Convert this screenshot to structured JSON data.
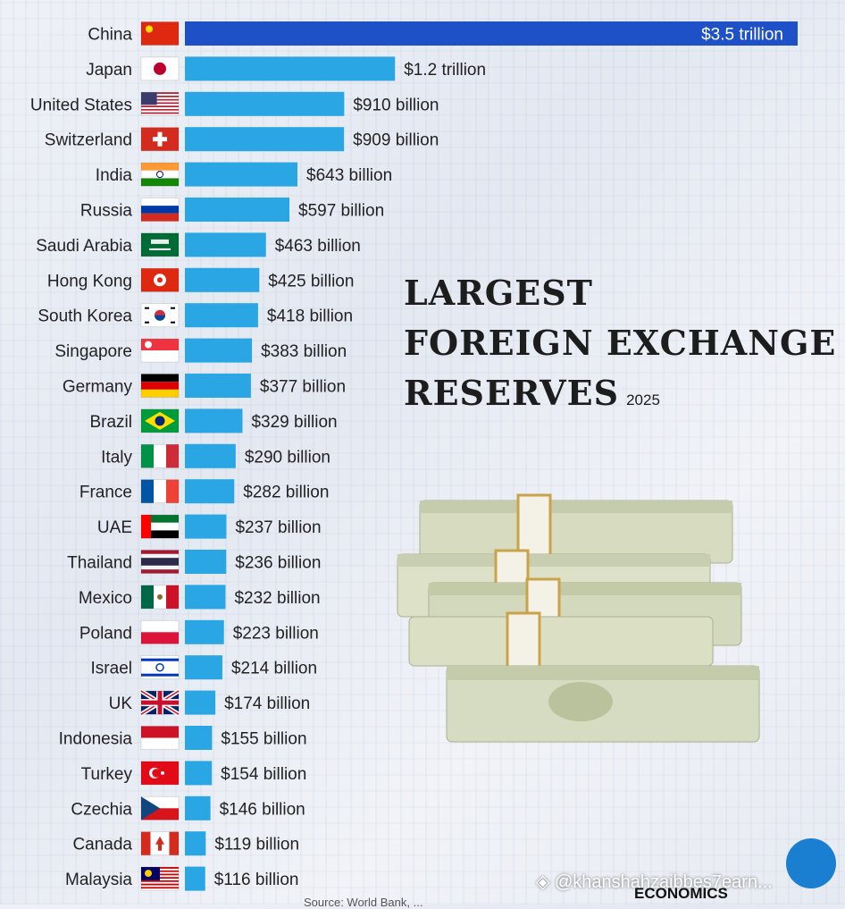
{
  "title": {
    "line1": "LARGEST",
    "line2": "FOREIGN EXCHANGE",
    "line3": "RESERVES",
    "year": "2025"
  },
  "footer": {
    "source": "Source: World Bank, ...",
    "brand": "ECONOMICS",
    "watermark": "◈ @khanshahzaibbes7earn..."
  },
  "colors": {
    "bar": "#2aa6e4",
    "bar_top": "#1e50c8"
  },
  "chart_data": {
    "type": "bar",
    "orientation": "horizontal",
    "categories": [
      "China",
      "Japan",
      "United States",
      "Switzerland",
      "India",
      "Russia",
      "Saudi Arabia",
      "Hong Kong",
      "South Korea",
      "Singapore",
      "Germany",
      "Brazil",
      "Italy",
      "France",
      "UAE",
      "Thailand",
      "Mexico",
      "Poland",
      "Israel",
      "UK",
      "Indonesia",
      "Turkey",
      "Czechia",
      "Canada",
      "Malaysia"
    ],
    "values": [
      3500,
      1200,
      910,
      909,
      643,
      597,
      463,
      425,
      418,
      383,
      377,
      329,
      290,
      282,
      237,
      236,
      232,
      223,
      214,
      174,
      155,
      154,
      146,
      119,
      116
    ],
    "value_unit": "USD billion",
    "data_labels": [
      "$3.5 trillion",
      "$1.2 trillion",
      "$910 billion",
      "$909 billion",
      "$643 billion",
      "$597 billion",
      "$463 billion",
      "$425 billion",
      "$418 billion",
      "$383 billion",
      "$377 billion",
      "$329 billion",
      "$290 billion",
      "$282 billion",
      "$237 billion",
      "$236 billion",
      "$232 billion",
      "$223 billion",
      "$214 billion",
      "$174 billion",
      "$155 billion",
      "$154 billion",
      "$146 billion",
      "$119 billion",
      "$116 billion"
    ],
    "flags": [
      "china-flag",
      "japan-flag",
      "usa-flag",
      "switzerland-flag",
      "india-flag",
      "russia-flag",
      "saudi-arabia-flag",
      "hong-kong-flag",
      "south-korea-flag",
      "singapore-flag",
      "germany-flag",
      "brazil-flag",
      "italy-flag",
      "france-flag",
      "uae-flag",
      "thailand-flag",
      "mexico-flag",
      "poland-flag",
      "israel-flag",
      "uk-flag",
      "indonesia-flag",
      "turkey-flag",
      "czechia-flag",
      "canada-flag",
      "malaysia-flag"
    ],
    "grid": false,
    "legend": "none"
  }
}
